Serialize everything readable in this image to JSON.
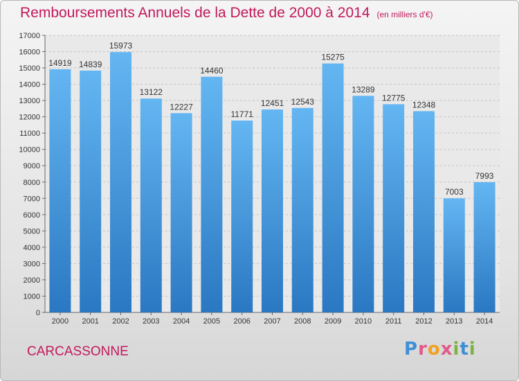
{
  "chart_data": {
    "type": "bar",
    "title": "Remboursements Annuels de la Dette de 2000 à 2014",
    "subtitle": "(en milliers d'€)",
    "categories": [
      "2000",
      "2001",
      "2002",
      "2003",
      "2004",
      "2005",
      "2006",
      "2007",
      "2008",
      "2009",
      "2010",
      "2011",
      "2012",
      "2013",
      "2014"
    ],
    "values": [
      14919,
      14839,
      15973,
      13122,
      12227,
      14460,
      11771,
      12451,
      12543,
      15275,
      13289,
      12775,
      12348,
      7003,
      7993
    ],
    "ylim": [
      0,
      17000
    ],
    "yticks": [
      0,
      1000,
      2000,
      3000,
      4000,
      5000,
      6000,
      7000,
      8000,
      9000,
      10000,
      11000,
      12000,
      13000,
      14000,
      15000,
      16000,
      17000
    ],
    "grid": true,
    "bar_color": "#3a8fd8"
  },
  "footer": {
    "city": "CARCASSONNE",
    "logo_letters": [
      {
        "ch": "P",
        "color": "#3d8fd6"
      },
      {
        "ch": "r",
        "color": "#e05a8a"
      },
      {
        "ch": "o",
        "color": "#f0a020"
      },
      {
        "ch": "x",
        "color": "#e05a8a"
      },
      {
        "ch": "i",
        "color": "#7cb342"
      },
      {
        "ch": "t",
        "color": "#3d8fd6"
      },
      {
        "ch": "i",
        "color": "#7cb342"
      }
    ]
  }
}
